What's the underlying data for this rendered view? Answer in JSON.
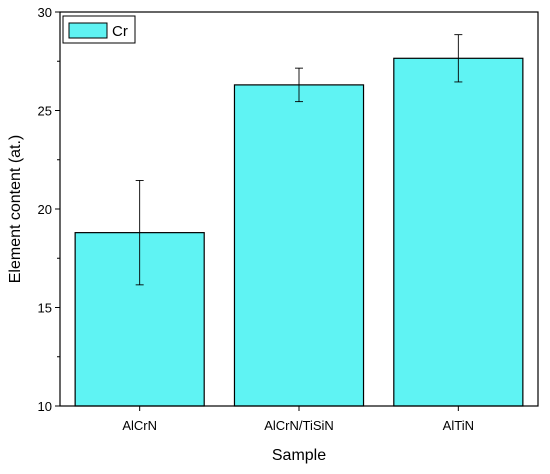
{
  "chart_data": {
    "type": "bar",
    "title": "",
    "xlabel": "Sample",
    "ylabel": "Element content (at.)",
    "categories": [
      "AlCrN",
      "AlCrN/TiSiN",
      "AlTiN"
    ],
    "series": [
      {
        "name": "Cr",
        "values": [
          18.8,
          26.3,
          27.65
        ],
        "errors": [
          2.65,
          0.85,
          1.2
        ]
      }
    ],
    "ylim": [
      10,
      30
    ],
    "yticks": [
      10,
      15,
      20,
      25,
      30
    ],
    "grid": false,
    "legend": "top-left",
    "colors": {
      "bar_fill": "#5ff3f3",
      "bar_stroke": "#000000"
    }
  }
}
